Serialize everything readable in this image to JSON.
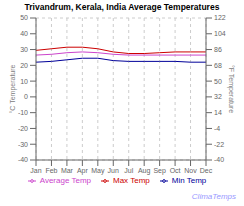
{
  "chart_data": {
    "type": "line",
    "title": "Trivandrum, Kerala, India Average Temperatures",
    "categories": [
      "Jan",
      "Feb",
      "Mar",
      "Apr",
      "May",
      "Jun",
      "Jul",
      "Aug",
      "Sep",
      "Oct",
      "Nov",
      "Dec"
    ],
    "series": [
      {
        "name": "Max Temp",
        "color": "#cc0000",
        "values": [
          29.5,
          30.5,
          31.5,
          31.5,
          30.5,
          28.5,
          27.5,
          27.5,
          28.0,
          28.5,
          28.5,
          28.5
        ]
      },
      {
        "name": "Average Temp",
        "color": "#cc44cc",
        "values": [
          26.5,
          27.0,
          28.0,
          28.5,
          28.0,
          27.0,
          26.5,
          26.5,
          26.5,
          26.5,
          26.5,
          26.5
        ]
      },
      {
        "name": "Min Temp",
        "color": "#000099",
        "values": [
          22.0,
          22.5,
          23.5,
          24.5,
          24.5,
          23.0,
          22.5,
          22.5,
          22.5,
          22.5,
          22.0,
          22.0
        ]
      }
    ],
    "y_label": "°C Temperature",
    "y2_label": "°F Temperature",
    "ylim": [
      -40,
      50
    ],
    "yticks": [
      -40,
      -30,
      -20,
      -10,
      0,
      10,
      20,
      30,
      40,
      50
    ],
    "y2lim": [
      -40,
      122
    ],
    "y2ticks": [
      -40,
      -22,
      -4,
      14,
      32,
      50,
      68,
      86,
      104,
      122
    ],
    "grid": true,
    "legend": "bottom",
    "annotations": [
      {
        "text": "ClimaTemps",
        "color": "#9999ff"
      }
    ]
  }
}
